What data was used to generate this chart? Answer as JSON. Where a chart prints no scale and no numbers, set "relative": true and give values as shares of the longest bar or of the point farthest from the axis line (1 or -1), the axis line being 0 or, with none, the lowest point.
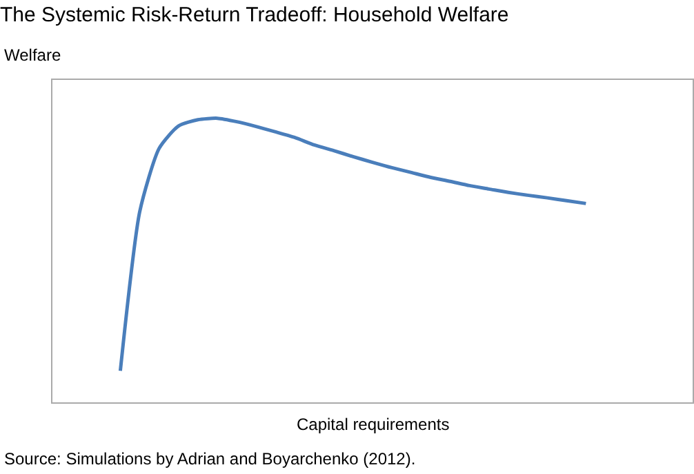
{
  "chart_data": {
    "type": "line",
    "title": "The Systemic Risk-Return Tradeoff: Household Welfare",
    "ylabel": "Welfare",
    "xlabel": "Capital requirements",
    "annotations": [
      "Source: Simulations by Adrian and Boyarchenko (2012)."
    ],
    "relative": true,
    "legend": false,
    "marker": "none",
    "line_style": "solid",
    "categories": [
      null,
      null,
      null,
      null,
      null,
      null,
      null,
      null,
      null,
      null,
      null,
      null,
      null,
      null,
      null,
      null,
      null,
      null,
      null,
      null,
      null,
      null,
      null,
      null,
      null,
      null,
      null,
      null,
      null,
      null,
      null,
      null,
      null
    ],
    "series": [
      {
        "color": "#4a7ebb",
        "values": [
          null,
          null,
          null,
          0.111,
          0.671,
          0.894,
          0.973,
          0.995,
          1,
          0.988,
          0.971,
          0.952,
          0.932,
          0.906,
          0.886,
          0.865,
          0.845,
          0.826,
          0.809,
          0.792,
          0.778,
          0.763,
          0.751,
          0.739,
          0.729,
          0.72,
          0.71,
          0.7,
          null,
          null,
          null,
          null,
          null
        ]
      }
    ]
  }
}
